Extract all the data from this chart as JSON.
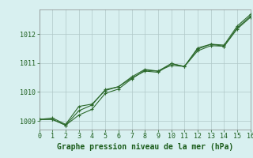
{
  "xlabel": "Graphe pression niveau de la mer (hPa)",
  "x": [
    0,
    1,
    2,
    3,
    4,
    5,
    6,
    7,
    8,
    9,
    10,
    11,
    12,
    13,
    14,
    15,
    16
  ],
  "line1": [
    1009.05,
    1009.05,
    1008.85,
    1009.2,
    1009.4,
    1009.95,
    1010.1,
    1010.45,
    1010.75,
    1010.72,
    1010.92,
    1010.88,
    1011.42,
    1011.6,
    1011.58,
    1012.18,
    1012.58
  ],
  "line2": [
    1009.05,
    1009.05,
    1008.85,
    1009.35,
    1009.55,
    1010.08,
    1010.18,
    1010.52,
    1010.78,
    1010.72,
    1010.98,
    1010.88,
    1011.48,
    1011.65,
    1011.58,
    1012.22,
    1012.62
  ],
  "line3": [
    1009.05,
    1009.1,
    1008.88,
    1009.5,
    1009.58,
    1010.05,
    1010.18,
    1010.48,
    1010.72,
    1010.68,
    1010.98,
    1010.88,
    1011.52,
    1011.65,
    1011.62,
    1012.28,
    1012.68
  ],
  "ylim": [
    1008.7,
    1012.85
  ],
  "yticks": [
    1009,
    1010,
    1011,
    1012
  ],
  "xlim": [
    0,
    16
  ],
  "xticks": [
    0,
    1,
    2,
    3,
    4,
    5,
    6,
    7,
    8,
    9,
    10,
    11,
    12,
    13,
    14,
    15,
    16
  ],
  "line_color": "#2d6a2d",
  "bg_color": "#d8f0f0",
  "grid_color": "#b0c8c8",
  "text_color": "#1a5c1a",
  "tick_fontsize": 6.0,
  "label_fontsize": 7.0
}
